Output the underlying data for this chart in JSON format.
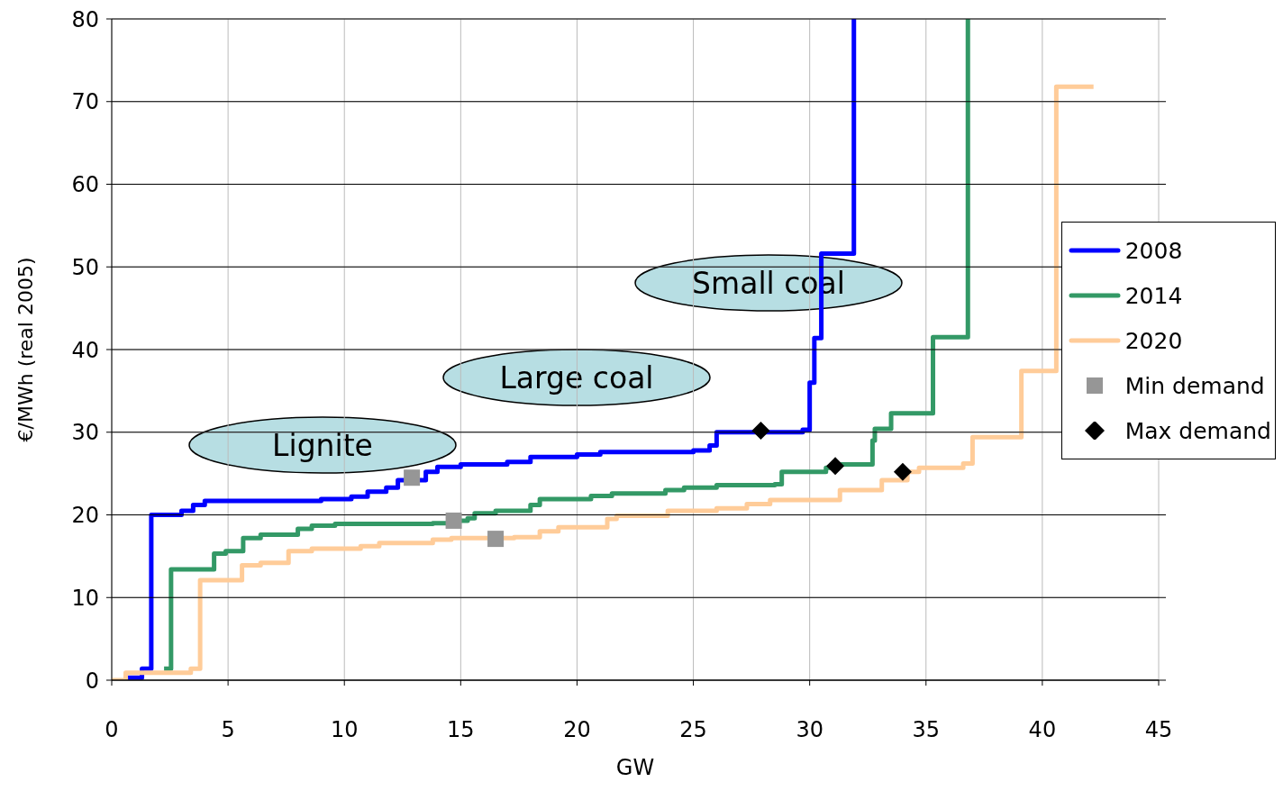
{
  "chart_data": {
    "type": "step",
    "xlabel": "GW",
    "ylabel": "€/MWh (real 2005)",
    "xlim": [
      0,
      45
    ],
    "xticks": [
      0,
      5,
      10,
      15,
      20,
      25,
      30,
      35,
      40,
      45
    ],
    "ylim": [
      0,
      80
    ],
    "yticks": [
      0,
      10,
      20,
      30,
      40,
      50,
      60,
      70,
      80
    ],
    "grid": true,
    "legend": "right",
    "marker": "none",
    "annotations": [
      "Lignite",
      "Large coal",
      "Small coal"
    ],
    "series": [
      {
        "name": "2008",
        "color": "#0000ff",
        "x": [
          0.7,
          1.3,
          1.7,
          3.0,
          3.5,
          4.0,
          9.0,
          10.3,
          11.0,
          11.8,
          12.3,
          13.5,
          14.0,
          15.0,
          17.0,
          18.0,
          20.0,
          21.0,
          25.0,
          25.7,
          26.0,
          29.7,
          30.0,
          30.2,
          30.5,
          31.9
        ],
        "values": [
          0.3,
          1.4,
          20,
          20.5,
          21.2,
          21.7,
          21.9,
          22.2,
          22.8,
          23.3,
          24.2,
          25.2,
          25.8,
          26.1,
          26.4,
          27.0,
          27.3,
          27.6,
          27.8,
          28.4,
          30.0,
          30.3,
          36,
          41.4,
          51.6,
          80
        ]
      },
      {
        "name": "2014",
        "color": "#339966",
        "x": [
          2.25,
          2.55,
          4.4,
          4.9,
          5.65,
          6.4,
          8.0,
          8.6,
          9.6,
          13.8,
          14.6,
          15.3,
          15.6,
          16.5,
          18.0,
          18.4,
          20.6,
          21.5,
          23.8,
          24.6,
          26.0,
          28.5,
          28.8,
          30.7,
          31.0,
          32.7,
          32.8,
          33.5,
          35.3,
          36.8
        ],
        "values": [
          1.4,
          13.4,
          15.3,
          15.6,
          17.2,
          17.6,
          18.3,
          18.7,
          18.9,
          19.0,
          19.3,
          19.6,
          20.2,
          20.5,
          21.2,
          21.9,
          22.3,
          22.6,
          23.0,
          23.3,
          23.6,
          23.7,
          25.2,
          25.7,
          26.1,
          29,
          30.4,
          32.3,
          41.5,
          80
        ]
      },
      {
        "name": "2020",
        "color": "#ffcc99",
        "x": [
          0,
          0.6,
          3.4,
          3.8,
          5.6,
          6.4,
          7.6,
          8.6,
          10.7,
          11.5,
          13.8,
          14.6,
          17.3,
          18.4,
          19.2,
          21.3,
          21.7,
          23.9,
          26.0,
          27.3,
          28.3,
          31.3,
          33.1,
          34.2,
          34.7,
          36.6,
          37.0,
          39.1,
          40.6,
          42.2
        ],
        "values": [
          0,
          0.9,
          1.4,
          12.1,
          13.9,
          14.2,
          15.6,
          15.9,
          16.2,
          16.6,
          17.0,
          17.2,
          17.3,
          18.0,
          18.5,
          19.5,
          19.9,
          20.5,
          20.8,
          21.3,
          21.8,
          23.0,
          24.2,
          25.2,
          25.7,
          26.2,
          29.4,
          37.4,
          71.8,
          71.8
        ]
      },
      {
        "name": "Min demand",
        "type": "scatter",
        "marker": "square",
        "color": "#969696",
        "x": [
          12.9,
          14.7,
          16.5
        ],
        "values": [
          24.5,
          19.3,
          17.1
        ]
      },
      {
        "name": "Max demand",
        "type": "scatter",
        "marker": "diamond",
        "color": "#000000",
        "x": [
          27.9,
          31.1,
          34.0
        ],
        "values": [
          30.2,
          25.9,
          25.2
        ]
      }
    ]
  }
}
